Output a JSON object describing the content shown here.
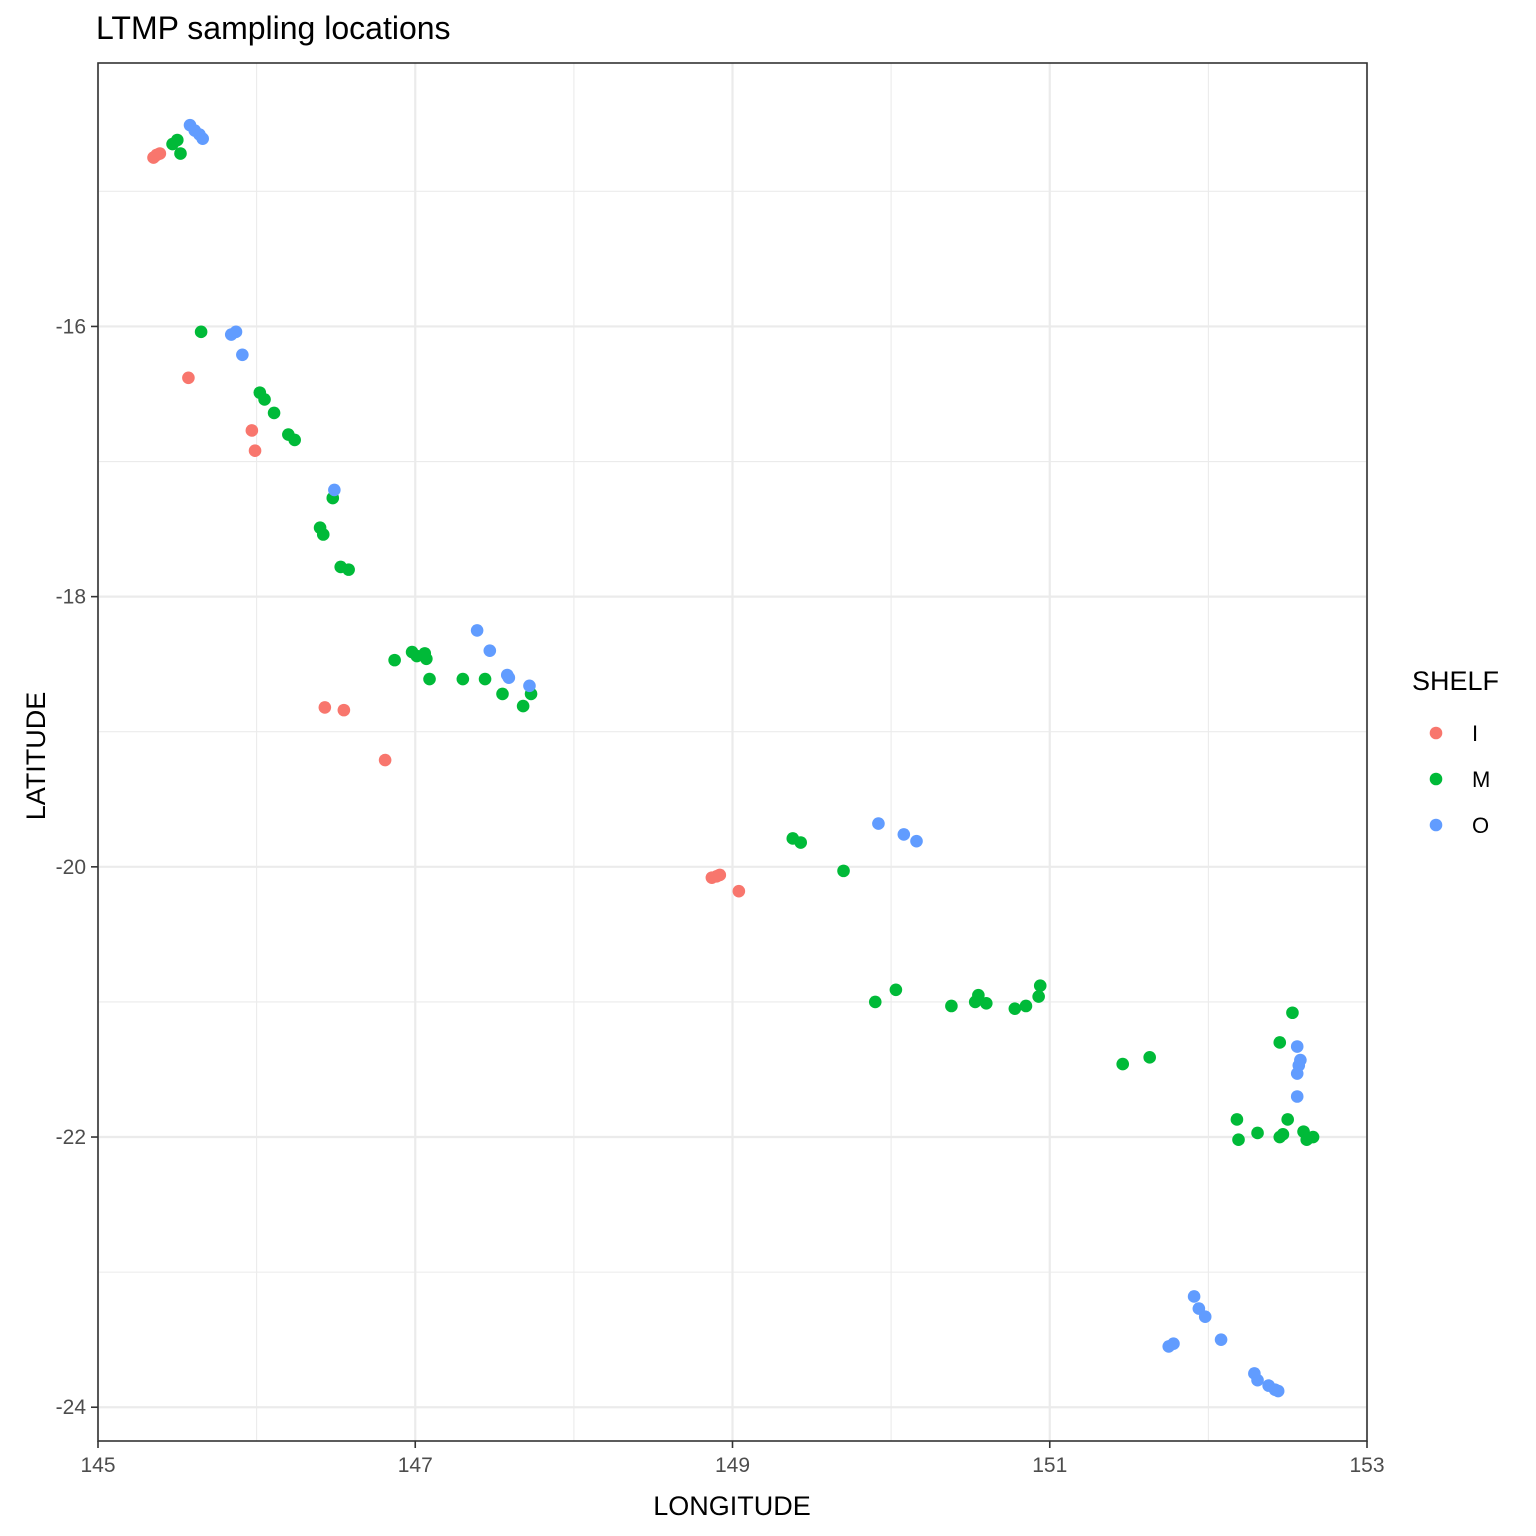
{
  "chart_data": {
    "type": "scatter",
    "title": "LTMP sampling locations",
    "xlabel": "LONGITUDE",
    "ylabel": "LATITUDE",
    "xlim": [
      145,
      153
    ],
    "ylim": [
      -24.25,
      -14.05
    ],
    "x_ticks": [
      "145",
      "147",
      "149",
      "151",
      "153"
    ],
    "y_ticks": [
      "-24",
      "-22",
      "-20",
      "-18",
      "-16"
    ],
    "grid": true,
    "legend": {
      "title": "SHELF",
      "position": "right"
    },
    "series": [
      {
        "name": "I",
        "color": "#F8766D",
        "points": [
          [
            145.35,
            -14.75
          ],
          [
            145.37,
            -14.73
          ],
          [
            145.39,
            -14.72
          ],
          [
            145.57,
            -16.38
          ],
          [
            145.97,
            -16.77
          ],
          [
            145.99,
            -16.92
          ],
          [
            146.43,
            -18.82
          ],
          [
            146.55,
            -18.84
          ],
          [
            146.81,
            -19.21
          ],
          [
            148.87,
            -20.08
          ],
          [
            148.9,
            -20.07
          ],
          [
            148.92,
            -20.06
          ],
          [
            149.04,
            -20.18
          ]
        ]
      },
      {
        "name": "M",
        "color": "#00BA38",
        "points": [
          [
            145.47,
            -14.65
          ],
          [
            145.5,
            -14.62
          ],
          [
            145.52,
            -14.72
          ],
          [
            145.65,
            -16.04
          ],
          [
            146.02,
            -16.49
          ],
          [
            146.05,
            -16.54
          ],
          [
            146.11,
            -16.64
          ],
          [
            146.2,
            -16.8
          ],
          [
            146.24,
            -16.84
          ],
          [
            146.48,
            -17.27
          ],
          [
            146.4,
            -17.49
          ],
          [
            146.42,
            -17.54
          ],
          [
            146.53,
            -17.78
          ],
          [
            146.58,
            -17.8
          ],
          [
            146.87,
            -18.47
          ],
          [
            146.98,
            -18.41
          ],
          [
            147.01,
            -18.44
          ],
          [
            147.06,
            -18.42
          ],
          [
            147.07,
            -18.46
          ],
          [
            147.09,
            -18.61
          ],
          [
            147.3,
            -18.61
          ],
          [
            147.44,
            -18.61
          ],
          [
            147.55,
            -18.72
          ],
          [
            147.68,
            -18.81
          ],
          [
            147.73,
            -18.72
          ],
          [
            149.38,
            -19.79
          ],
          [
            149.43,
            -19.82
          ],
          [
            149.7,
            -20.03
          ],
          [
            149.9,
            -21.0
          ],
          [
            150.03,
            -20.91
          ],
          [
            150.38,
            -21.03
          ],
          [
            150.53,
            -21.0
          ],
          [
            150.55,
            -20.95
          ],
          [
            150.6,
            -21.01
          ],
          [
            150.78,
            -21.05
          ],
          [
            150.85,
            -21.03
          ],
          [
            150.93,
            -20.96
          ],
          [
            150.94,
            -20.88
          ],
          [
            151.46,
            -21.46
          ],
          [
            151.63,
            -21.41
          ],
          [
            152.18,
            -21.87
          ],
          [
            152.19,
            -22.02
          ],
          [
            152.31,
            -21.97
          ],
          [
            152.45,
            -22.0
          ],
          [
            152.47,
            -21.98
          ],
          [
            152.5,
            -21.87
          ],
          [
            152.53,
            -21.08
          ],
          [
            152.45,
            -21.3
          ],
          [
            152.6,
            -21.96
          ],
          [
            152.62,
            -22.02
          ],
          [
            152.66,
            -22.0
          ]
        ]
      },
      {
        "name": "O",
        "color": "#619CFF",
        "points": [
          [
            145.58,
            -14.51
          ],
          [
            145.61,
            -14.55
          ],
          [
            145.64,
            -14.58
          ],
          [
            145.66,
            -14.61
          ],
          [
            145.84,
            -16.06
          ],
          [
            145.87,
            -16.04
          ],
          [
            145.91,
            -16.21
          ],
          [
            146.49,
            -17.21
          ],
          [
            147.39,
            -18.25
          ],
          [
            147.47,
            -18.4
          ],
          [
            147.58,
            -18.58
          ],
          [
            147.59,
            -18.6
          ],
          [
            147.72,
            -18.66
          ],
          [
            149.92,
            -19.68
          ],
          [
            150.08,
            -19.76
          ],
          [
            150.16,
            -19.81
          ],
          [
            152.56,
            -21.33
          ],
          [
            152.58,
            -21.43
          ],
          [
            152.57,
            -21.47
          ],
          [
            152.56,
            -21.53
          ],
          [
            152.56,
            -21.7
          ],
          [
            151.91,
            -23.18
          ],
          [
            151.94,
            -23.27
          ],
          [
            151.98,
            -23.33
          ],
          [
            152.08,
            -23.5
          ],
          [
            151.75,
            -23.55
          ],
          [
            151.78,
            -23.53
          ],
          [
            152.29,
            -23.75
          ],
          [
            152.31,
            -23.8
          ],
          [
            152.38,
            -23.84
          ],
          [
            152.42,
            -23.87
          ],
          [
            152.44,
            -23.88
          ]
        ]
      }
    ]
  }
}
